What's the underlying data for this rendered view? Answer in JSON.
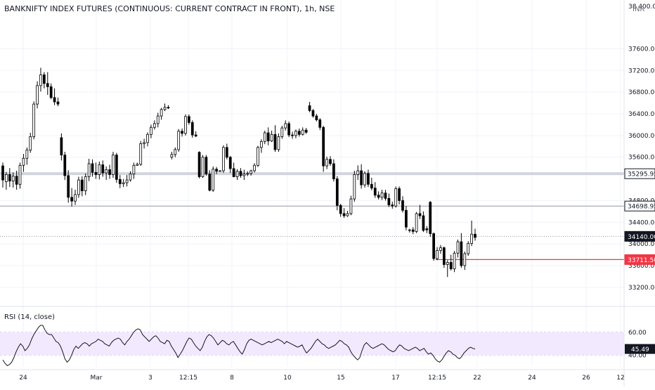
{
  "header": {
    "title": "BANKNIFTY INDEX FUTURES (CONTINUOUS: CURRENT CONTRACT IN FRONT), 1h, NSE",
    "currency": "INR",
    "top_axis_label": "38 400.00"
  },
  "rsi": {
    "label": "RSI (14, close)",
    "current": "45.49",
    "ticks": [
      "60.00",
      "40.00"
    ]
  },
  "colors": {
    "candle": "#000000",
    "candle_up_fill": "#ffffff",
    "grid": "#f0f3fa",
    "level_grey": "#9598a1",
    "level_red": "#f23645",
    "rsi_band": "#f2e9fe",
    "rsi_line": "#131722"
  },
  "chart_data": {
    "type": "candlestick",
    "title": "BANKNIFTY INDEX FUTURES (CONTINUOUS: CURRENT CONTRACT IN FRONT), 1h, NSE",
    "ylim": [
      32900,
      38500
    ],
    "y_ticks": [
      "37600.00",
      "37200.00",
      "36800.00",
      "36400.00",
      "36000.00",
      "35600.00",
      "34800.00",
      "34400.00",
      "34000.00",
      "33600.00",
      "33200.00"
    ],
    "x_ticks": [
      "24",
      "Mar",
      "3",
      "12:15",
      "8",
      "10",
      "15",
      "17",
      "12:15",
      "22",
      "24",
      "26",
      "12"
    ],
    "levels": [
      {
        "value": 35295.95,
        "label": "35295.95",
        "style": "grey-band"
      },
      {
        "value": 34698.95,
        "label": "34698.95",
        "style": "grey-line"
      },
      {
        "value": 34140.0,
        "label": "34140.00",
        "style": "current"
      },
      {
        "value": 33711.5,
        "label": "33711.50",
        "style": "red-line"
      }
    ],
    "candles": [
      [
        35440,
        35500,
        35040,
        35180
      ],
      [
        35150,
        35330,
        35000,
        35280
      ],
      [
        35280,
        35400,
        35050,
        35160
      ],
      [
        35160,
        35320,
        35040,
        35250
      ],
      [
        35250,
        35350,
        35000,
        35100
      ],
      [
        35100,
        35500,
        35020,
        35450
      ],
      [
        35450,
        35660,
        35330,
        35580
      ],
      [
        35580,
        35780,
        35460,
        35730
      ],
      [
        35730,
        36050,
        35680,
        35980
      ],
      [
        35980,
        36630,
        35930,
        36580
      ],
      [
        36580,
        37000,
        36500,
        36920
      ],
      [
        36920,
        37250,
        36810,
        37120
      ],
      [
        37120,
        37170,
        36870,
        36960
      ],
      [
        36960,
        37170,
        36750,
        36900
      ],
      [
        36900,
        36960,
        36670,
        36700
      ],
      [
        36700,
        36870,
        36560,
        36620
      ],
      [
        36620,
        36700,
        36540,
        36580
      ],
      [
        35960,
        36040,
        35540,
        35640
      ],
      [
        35640,
        35700,
        35180,
        35260
      ],
      [
        35260,
        35360,
        34760,
        34860
      ],
      [
        34860,
        35030,
        34690,
        34790
      ],
      [
        34790,
        35000,
        34720,
        34910
      ],
      [
        34910,
        35240,
        34850,
        35180
      ],
      [
        35180,
        35250,
        34880,
        34980
      ],
      [
        34980,
        35300,
        34900,
        35240
      ],
      [
        35240,
        35570,
        35160,
        35480
      ],
      [
        35480,
        35560,
        35240,
        35320
      ],
      [
        35320,
        35500,
        35200,
        35280
      ],
      [
        35280,
        35520,
        35190,
        35460
      ],
      [
        35460,
        35540,
        35240,
        35310
      ],
      [
        35310,
        35430,
        35180,
        35370
      ],
      [
        35370,
        35460,
        35200,
        35280
      ],
      [
        35280,
        35700,
        35220,
        35640
      ],
      [
        35640,
        35680,
        35130,
        35190
      ],
      [
        35190,
        35270,
        35030,
        35110
      ],
      [
        35110,
        35200,
        35050,
        35130
      ],
      [
        35130,
        35270,
        35060,
        35180
      ],
      [
        35180,
        35340,
        35150,
        35290
      ],
      [
        35290,
        35500,
        35200,
        35450
      ],
      [
        35450,
        35500,
        35440,
        35470
      ],
      [
        35470,
        35900,
        35440,
        35850
      ],
      [
        35850,
        35940,
        35760,
        35870
      ],
      [
        35870,
        36060,
        35800,
        36020
      ],
      [
        36020,
        36200,
        35950,
        36150
      ],
      [
        36150,
        36280,
        36110,
        36220
      ],
      [
        36220,
        36420,
        36150,
        36360
      ],
      [
        36360,
        36510,
        36290,
        36480
      ],
      [
        36480,
        36590,
        36450,
        36520
      ],
      [
        36520,
        36560,
        36490,
        36510
      ],
      [
        35600,
        35700,
        35560,
        35650
      ],
      [
        35650,
        35780,
        35600,
        35740
      ],
      [
        35740,
        36120,
        35700,
        36080
      ],
      [
        36080,
        36130,
        35980,
        36040
      ],
      [
        36040,
        36390,
        36000,
        36350
      ],
      [
        36350,
        36390,
        36200,
        36240
      ],
      [
        36240,
        36280,
        35960,
        36010
      ],
      [
        36010,
        36080,
        35970,
        35990
      ],
      [
        35690,
        35710,
        35210,
        35240
      ],
      [
        35240,
        35640,
        35220,
        35600
      ],
      [
        35600,
        35640,
        35260,
        35290
      ],
      [
        35290,
        35360,
        34970,
        34990
      ],
      [
        34990,
        35430,
        34960,
        35380
      ],
      [
        35380,
        35420,
        35290,
        35340
      ],
      [
        35340,
        35360,
        35330,
        35350
      ],
      [
        35350,
        35820,
        35310,
        35780
      ],
      [
        35780,
        35850,
        35560,
        35600
      ],
      [
        35600,
        35620,
        35310,
        35390
      ],
      [
        35390,
        35500,
        35230,
        35240
      ],
      [
        35240,
        35380,
        35180,
        35340
      ],
      [
        35340,
        35400,
        35220,
        35260
      ],
      [
        35260,
        35370,
        35180,
        35290
      ],
      [
        35290,
        35340,
        35250,
        35300
      ],
      [
        35300,
        35370,
        35260,
        35350
      ],
      [
        35350,
        35490,
        35320,
        35450
      ],
      [
        35450,
        35810,
        35420,
        35780
      ],
      [
        35780,
        35930,
        35680,
        35890
      ],
      [
        35890,
        36090,
        35840,
        36050
      ],
      [
        36050,
        36150,
        35820,
        35900
      ],
      [
        35900,
        36090,
        35880,
        36020
      ],
      [
        36020,
        36190,
        35700,
        35740
      ],
      [
        35740,
        36040,
        35700,
        35980
      ],
      [
        35980,
        36180,
        35940,
        36140
      ],
      [
        36140,
        36280,
        36090,
        36220
      ],
      [
        36220,
        36260,
        35970,
        36010
      ],
      [
        36010,
        36070,
        35940,
        36000
      ],
      [
        36000,
        36110,
        35950,
        36080
      ],
      [
        36080,
        36130,
        35980,
        36020
      ],
      [
        36020,
        36150,
        36000,
        36100
      ],
      [
        36100,
        36140,
        36030,
        36060
      ],
      [
        36550,
        36620,
        36430,
        36460
      ],
      [
        36460,
        36490,
        36330,
        36360
      ],
      [
        36360,
        36400,
        36260,
        36290
      ],
      [
        36290,
        36320,
        36100,
        36150
      ],
      [
        36150,
        36180,
        35330,
        35440
      ],
      [
        35440,
        35610,
        35380,
        35560
      ],
      [
        35560,
        35620,
        35440,
        35480
      ],
      [
        35480,
        35560,
        35150,
        35200
      ],
      [
        35200,
        35250,
        34620,
        34710
      ],
      [
        34710,
        34740,
        34500,
        34560
      ],
      [
        34560,
        34660,
        34480,
        34520
      ],
      [
        34520,
        34610,
        34500,
        34560
      ],
      [
        34560,
        34890,
        34530,
        34830
      ],
      [
        34830,
        35350,
        34780,
        35280
      ],
      [
        35280,
        35450,
        35180,
        35350
      ],
      [
        35350,
        35470,
        35020,
        35090
      ],
      [
        35090,
        35340,
        35040,
        35300
      ],
      [
        35300,
        35370,
        35050,
        35100
      ],
      [
        35100,
        35220,
        34990,
        35030
      ],
      [
        35030,
        35140,
        34850,
        34900
      ],
      [
        34900,
        34970,
        34820,
        34860
      ],
      [
        34860,
        35000,
        34810,
        34940
      ],
      [
        34940,
        35000,
        34800,
        34840
      ],
      [
        34840,
        34930,
        34680,
        34720
      ],
      [
        34720,
        34780,
        34650,
        34700
      ],
      [
        34700,
        35060,
        34670,
        35020
      ],
      [
        35020,
        35060,
        34730,
        34800
      ],
      [
        34800,
        34880,
        34580,
        34620
      ],
      [
        34620,
        34700,
        34250,
        34310
      ],
      [
        34250,
        34280,
        34210,
        34260
      ],
      [
        34260,
        34310,
        34180,
        34230
      ],
      [
        34230,
        34590,
        34200,
        34560
      ],
      [
        34560,
        34720,
        34460,
        34520
      ],
      [
        34520,
        34600,
        34220,
        34250
      ],
      [
        34280,
        34330,
        34200,
        34260
      ],
      [
        34770,
        34790,
        34130,
        34190
      ],
      [
        34190,
        34210,
        33690,
        33730
      ],
      [
        33730,
        33940,
        33700,
        33880
      ],
      [
        33880,
        33980,
        33820,
        33930
      ],
      [
        33930,
        33950,
        33560,
        33620
      ],
      [
        33620,
        33700,
        33390,
        33660
      ],
      [
        33660,
        33800,
        33510,
        33540
      ],
      [
        33540,
        33870,
        33480,
        33830
      ],
      [
        33830,
        34080,
        33750,
        34040
      ],
      [
        34040,
        34200,
        33560,
        33600
      ],
      [
        33600,
        33860,
        33520,
        33820
      ],
      [
        33820,
        34050,
        33780,
        34010
      ],
      [
        34010,
        34430,
        33960,
        34180
      ],
      [
        34180,
        34280,
        34060,
        34120
      ]
    ],
    "rsi_ylim": [
      30,
      80
    ],
    "rsi_values": [
      36,
      33,
      31,
      32,
      34,
      38,
      43,
      47,
      50,
      48,
      44,
      46,
      49,
      54,
      58,
      61,
      64,
      66,
      66,
      62,
      59,
      58,
      58,
      55,
      52,
      51,
      48,
      43,
      37,
      34,
      36,
      40,
      45,
      48,
      46,
      48,
      50,
      51,
      50,
      48,
      50,
      51,
      52,
      54,
      53,
      52,
      50,
      49,
      48,
      51,
      53,
      54,
      55,
      54,
      51,
      49,
      52,
      54,
      57,
      60,
      62,
      63,
      62,
      58,
      56,
      54,
      52,
      54,
      56,
      57,
      55,
      52,
      51,
      50,
      53,
      52,
      48,
      45,
      42,
      38,
      41,
      44,
      48,
      52,
      55,
      54,
      51,
      48,
      46,
      44,
      47,
      52,
      56,
      58,
      57,
      55,
      52,
      49,
      51,
      53,
      52,
      50,
      49,
      51,
      52,
      49,
      46,
      43,
      41,
      45,
      50,
      53,
      54,
      53,
      52,
      51,
      50,
      49,
      50,
      51,
      52,
      51,
      52,
      53,
      54,
      53,
      52,
      50,
      52,
      51,
      50,
      49,
      48,
      47,
      48,
      49,
      45,
      42,
      44,
      46,
      49,
      52,
      54,
      52,
      50,
      49,
      47,
      46,
      47,
      48,
      49,
      51,
      53,
      52,
      50,
      49,
      47,
      43,
      40,
      38,
      36,
      38,
      44,
      49,
      51,
      49,
      47,
      46,
      47,
      48,
      49,
      50,
      49,
      47,
      45,
      44,
      43,
      44,
      47,
      49,
      48,
      46,
      45,
      44,
      45,
      46,
      47,
      46,
      44,
      45,
      46,
      43,
      41,
      42,
      40,
      37,
      35,
      34,
      36,
      39,
      42,
      44,
      43,
      41,
      40,
      38,
      37,
      39,
      42,
      44,
      46,
      47,
      46,
      45.49
    ]
  }
}
